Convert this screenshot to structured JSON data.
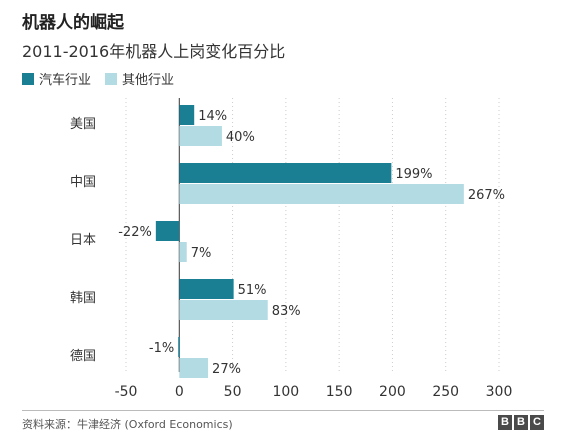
{
  "title": "机器人的崛起",
  "subtitle": "2011-2016年机器人上岗变化百分比",
  "source": "资料来源：牛津经济 (Oxford Economics)",
  "logo": [
    "B",
    "B",
    "C"
  ],
  "colors": {
    "auto": "#1b7f94",
    "other": "#b2dbe3"
  },
  "chart_data": {
    "type": "bar",
    "orientation": "horizontal",
    "categories": [
      "美国",
      "中国",
      "日本",
      "韩国",
      "德国"
    ],
    "series": [
      {
        "name": "汽车行业",
        "values": [
          14,
          199,
          -22,
          51,
          -1
        ],
        "labels": [
          "14%",
          "199%",
          "-22%",
          "51%",
          "-1%"
        ]
      },
      {
        "name": "其他行业",
        "values": [
          40,
          267,
          7,
          83,
          27
        ],
        "labels": [
          "40%",
          "267%",
          "7%",
          "83%",
          "27%"
        ]
      }
    ],
    "xlim": [
      -50,
      300
    ],
    "xticks": [
      -50,
      0,
      50,
      100,
      150,
      200,
      250,
      300
    ],
    "xtick_labels": [
      "-50",
      "0",
      "50",
      "100",
      "150",
      "200",
      "250",
      "300"
    ],
    "grid": "vertical dotted",
    "legend": "top-left"
  }
}
